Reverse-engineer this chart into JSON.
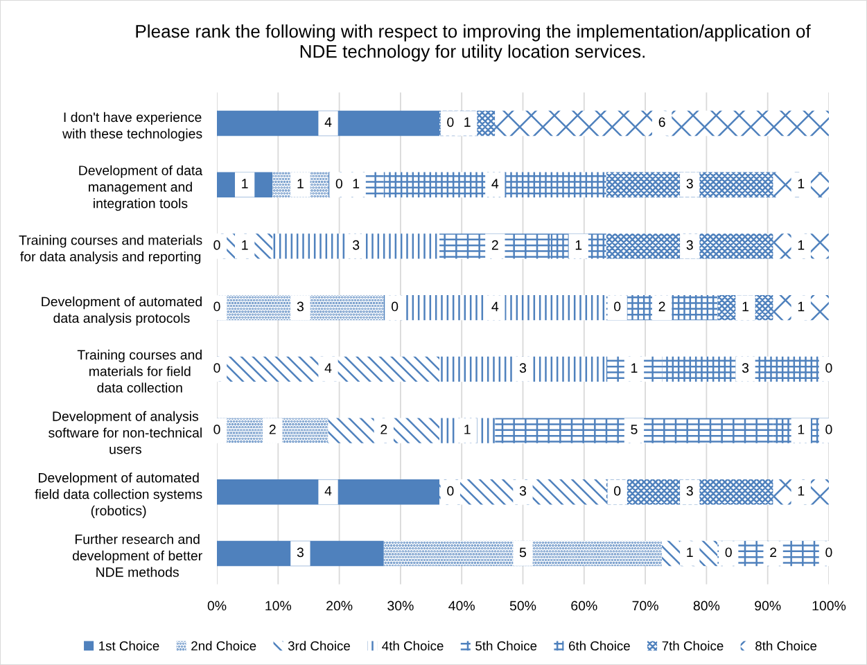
{
  "chart_data": {
    "type": "bar",
    "orientation": "horizontal",
    "stacked": true,
    "title": "Please rank the following with respect to improving the implementation/application of\nNDE technology for utility location services.",
    "categories": [
      "I don't have experience\nwith these technologies",
      "Development of data\nmanagement and\nintegration tools",
      "Training courses and materials\nfor data analysis and reporting",
      "Development of automated\ndata analysis protocols",
      "Training courses and\nmaterials for field\ndata collection",
      "Development of analysis\nsoftware for non-technical\nusers",
      "Development of automated\nfield data collection systems\n(robotics)",
      "Further research and\ndevelopment of better\nNDE methods"
    ],
    "series": [
      {
        "name": "1st Choice",
        "color": "#4f81bd",
        "values": [
          36.36,
          9.09,
          0,
          0,
          0,
          0,
          36.36,
          27.27
        ]
      },
      {
        "name": "2nd Choice",
        "color": "#4f81bd",
        "values": [
          0,
          9.09,
          0,
          27.27,
          0,
          18.18,
          0,
          45.45
        ]
      },
      {
        "name": "3rd Choice",
        "color": "#4f81bd",
        "values": [
          0,
          0,
          9.09,
          0,
          36.36,
          18.18,
          27.27,
          9.09
        ]
      },
      {
        "name": "4th Choice",
        "color": "#4f81bd",
        "values": [
          0,
          0,
          27.27,
          36.36,
          27.27,
          9.09,
          0,
          0
        ]
      },
      {
        "name": "5th Choice",
        "color": "#4f81bd",
        "values": [
          0,
          9.09,
          18.18,
          0,
          9.09,
          45.45,
          0,
          18.18
        ]
      },
      {
        "name": "6th Choice",
        "color": "#4f81bd",
        "values": [
          0,
          36.36,
          9.09,
          18.18,
          27.27,
          9.09,
          0,
          0
        ]
      },
      {
        "name": "7th Choice",
        "color": "#4f81bd",
        "values": [
          9.09,
          27.27,
          27.27,
          9.09,
          0,
          0,
          27.27,
          0
        ]
      },
      {
        "name": "8th Choice",
        "color": "#4f81bd",
        "values": [
          54.55,
          9.09,
          9.09,
          9.09,
          0,
          0,
          9.09,
          0
        ]
      }
    ],
    "annotations": [
      "4",
      "0",
      "1",
      "6",
      "1",
      "1",
      "0",
      "1",
      "4",
      "3",
      "1",
      "0",
      "1",
      "3",
      "2",
      "1",
      "3",
      "1",
      "0",
      "3",
      "0",
      "4",
      "0",
      "2",
      "1",
      "1",
      "0",
      "4",
      "3",
      "1",
      "3",
      "0",
      "0",
      "2",
      "2",
      "1",
      "5",
      "1",
      "0",
      "4",
      "0",
      "3",
      "0",
      "3",
      "1",
      "3",
      "5",
      "1",
      "0",
      "2",
      "0"
    ],
    "xlim": [
      0,
      100
    ],
    "xticks": [
      {
        "value": 0,
        "label": "0%"
      },
      {
        "value": 10,
        "label": "10%"
      },
      {
        "value": 20,
        "label": "20%"
      },
      {
        "value": 30,
        "label": "30%"
      },
      {
        "value": 40,
        "label": "40%"
      },
      {
        "value": 50,
        "label": "50%"
      },
      {
        "value": 60,
        "label": "60%"
      },
      {
        "value": 70,
        "label": "70%"
      },
      {
        "value": 80,
        "label": "80%"
      },
      {
        "value": 90,
        "label": "90%"
      },
      {
        "value": 100,
        "label": "100%"
      }
    ],
    "grid": "x",
    "legend": "bottom"
  }
}
